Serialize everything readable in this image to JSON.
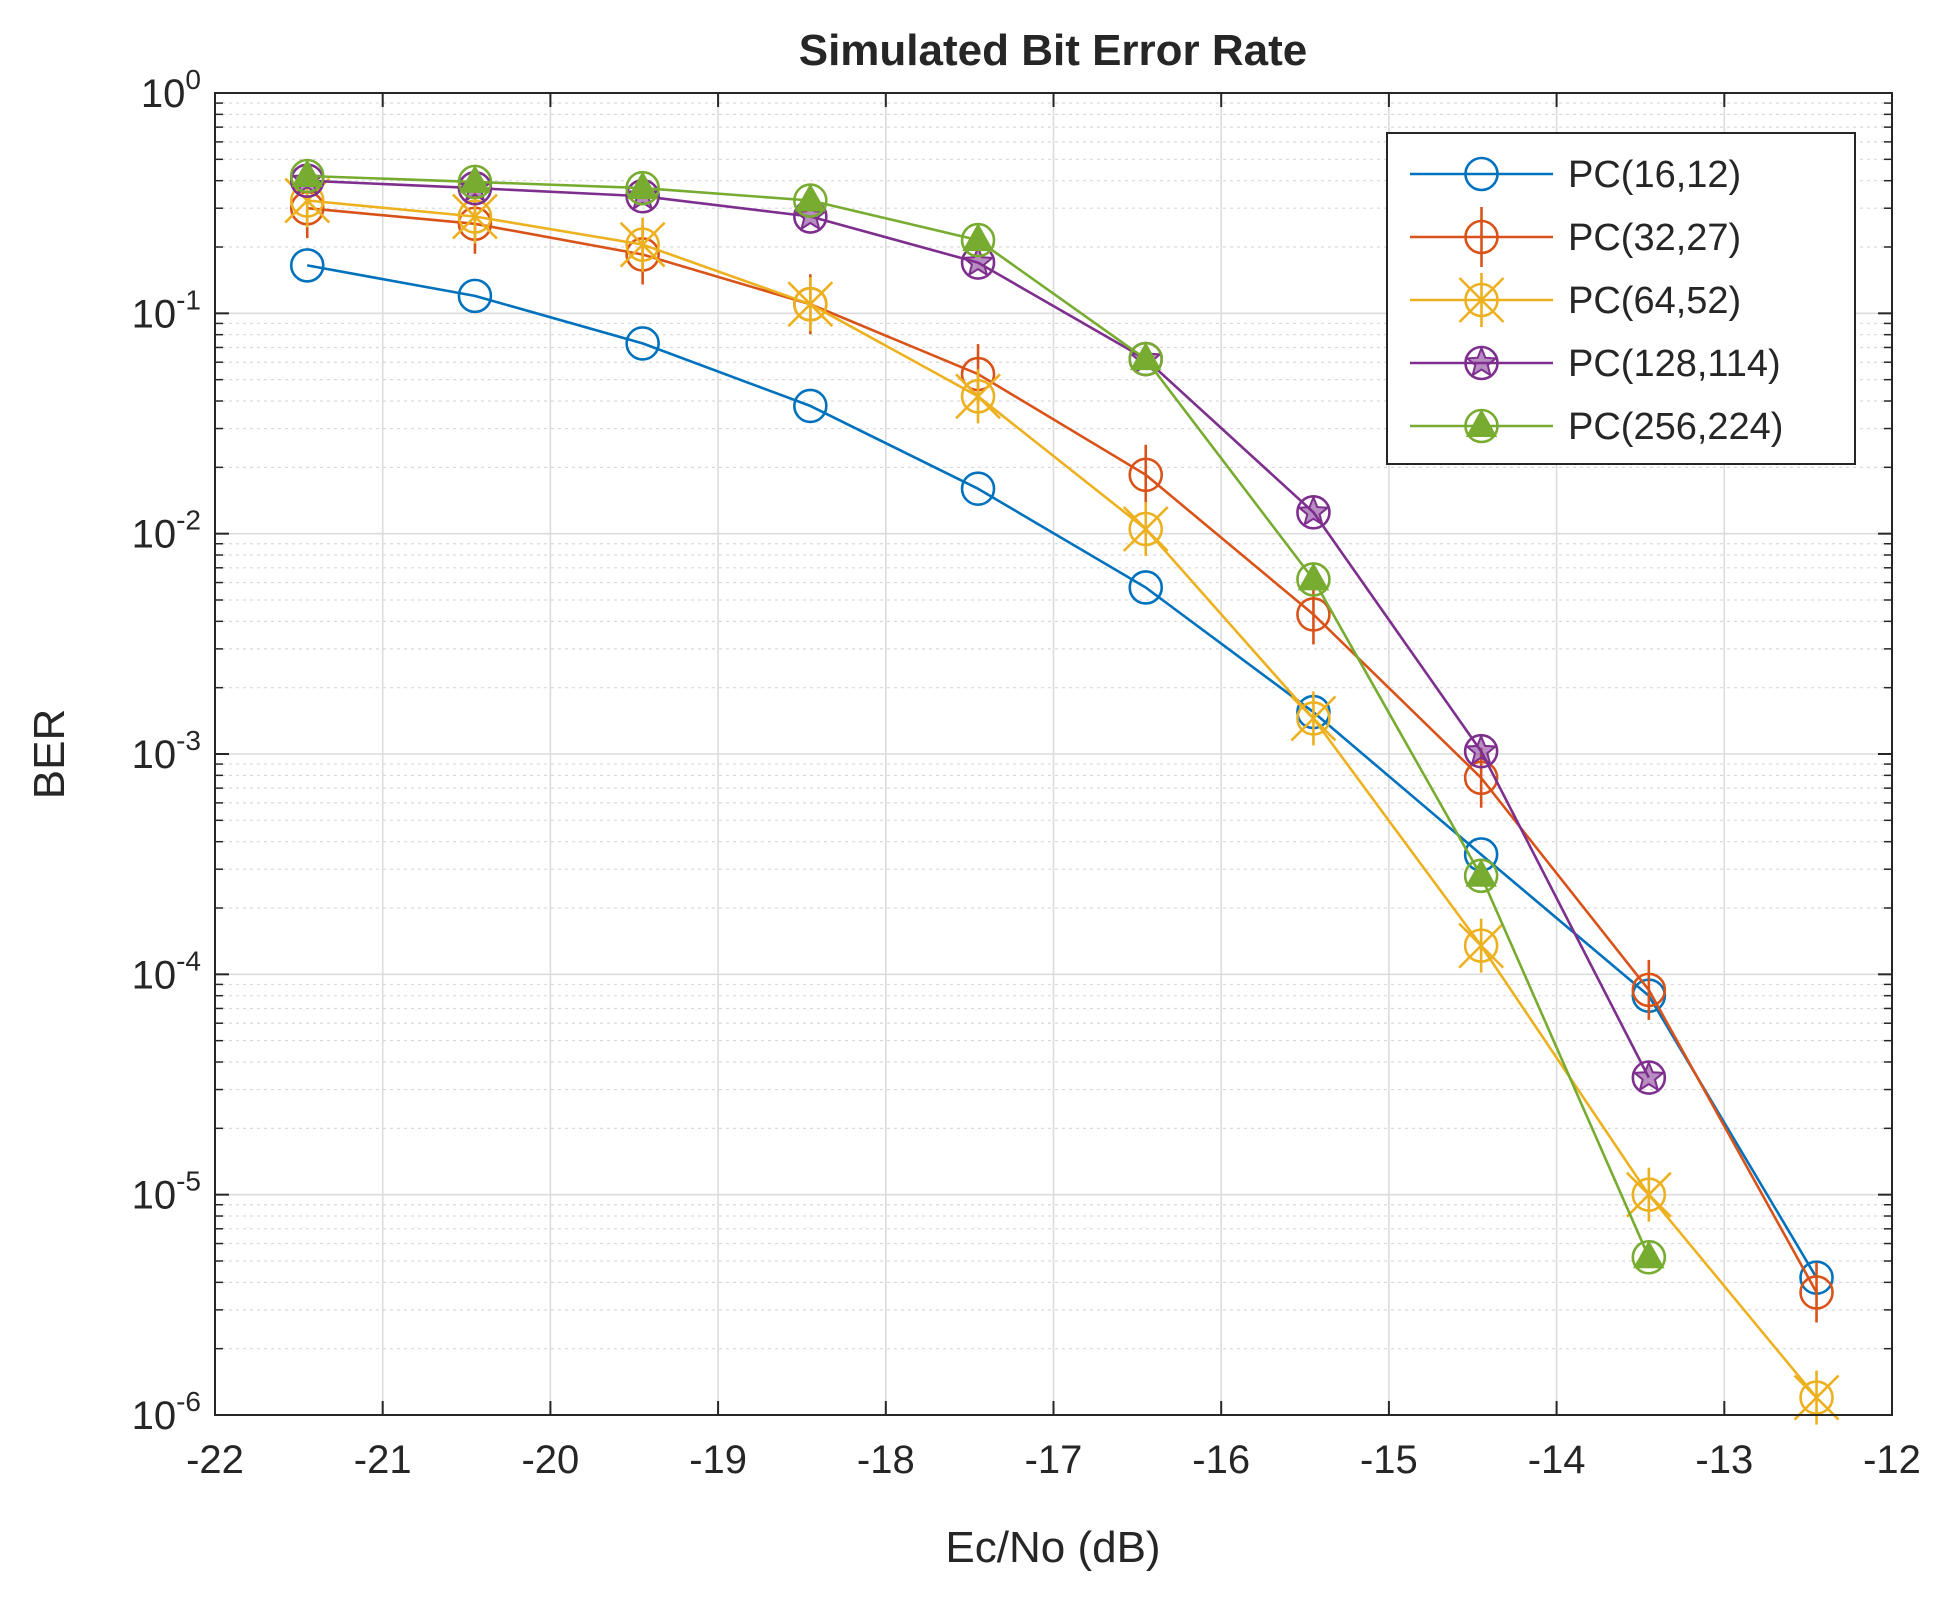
{
  "chart_data": {
    "type": "line",
    "title": "Simulated Bit Error Rate",
    "xlabel": "Ec/No (dB)",
    "ylabel": "BER",
    "xscale": "linear",
    "yscale": "log",
    "xlim": [
      -22,
      -12
    ],
    "ylim": [
      1e-06,
      1
    ],
    "grid": true,
    "minor_grid": true,
    "legend_position": "top-right",
    "x_ticks": [
      -22,
      -21,
      -20,
      -19,
      -18,
      -17,
      -16,
      -15,
      -14,
      -13,
      -12
    ],
    "x_tick_labels": [
      "-22",
      "-21",
      "-20",
      "-19",
      "-18",
      "-17",
      "-16",
      "-15",
      "-14",
      "-13",
      "-12"
    ],
    "y_ticks": [
      {
        "value": 1,
        "base": "10",
        "exp": "0"
      },
      {
        "value": 0.1,
        "base": "10",
        "exp": "-1"
      },
      {
        "value": 0.01,
        "base": "10",
        "exp": "-2"
      },
      {
        "value": 0.001,
        "base": "10",
        "exp": "-3"
      },
      {
        "value": 0.0001,
        "base": "10",
        "exp": "-4"
      },
      {
        "value": 1e-05,
        "base": "10",
        "exp": "-5"
      },
      {
        "value": 1e-06,
        "base": "10",
        "exp": "-6"
      }
    ],
    "series": [
      {
        "name": "PC(16,12)",
        "color": "#0072BD",
        "marker": "circle",
        "x": [
          -21.45,
          -20.45,
          -19.45,
          -18.45,
          -17.45,
          -16.45,
          -15.45,
          -14.45,
          -13.45,
          -12.45
        ],
        "y": [
          0.165,
          0.12,
          0.073,
          0.038,
          0.016,
          0.0057,
          0.00155,
          0.00035,
          8e-05,
          4.2e-06
        ]
      },
      {
        "name": "PC(32,27)",
        "color": "#D95319",
        "marker": "circle-plus",
        "x": [
          -21.45,
          -20.45,
          -19.45,
          -18.45,
          -17.45,
          -16.45,
          -15.45,
          -14.45,
          -13.45,
          -12.45
        ],
        "y": [
          0.3,
          0.255,
          0.185,
          0.11,
          0.053,
          0.0185,
          0.0043,
          0.00078,
          8.5e-05,
          3.6e-06
        ]
      },
      {
        "name": "PC(64,52)",
        "color": "#EDB120",
        "marker": "asterisk-circle",
        "x": [
          -21.45,
          -20.45,
          -19.45,
          -18.45,
          -17.45,
          -16.45,
          -15.45,
          -14.45,
          -13.45,
          -12.45
        ],
        "y": [
          0.325,
          0.275,
          0.205,
          0.11,
          0.042,
          0.0105,
          0.00145,
          0.000135,
          1e-05,
          1.2e-06
        ]
      },
      {
        "name": "PC(128,114)",
        "color": "#7E2F8E",
        "marker": "pentagram-circle",
        "x": [
          -21.45,
          -20.45,
          -19.45,
          -18.45,
          -17.45,
          -16.45,
          -15.45,
          -14.45,
          -13.45
        ],
        "y": [
          0.4,
          0.37,
          0.34,
          0.275,
          0.17,
          0.062,
          0.0125,
          0.00103,
          3.4e-05
        ]
      },
      {
        "name": "PC(256,224)",
        "color": "#77AC30",
        "marker": "triangle-circle",
        "x": [
          -21.45,
          -20.45,
          -19.45,
          -18.45,
          -17.45,
          -16.45,
          -15.45,
          -14.45,
          -13.45
        ],
        "y": [
          0.42,
          0.395,
          0.37,
          0.325,
          0.215,
          0.062,
          0.0062,
          0.00028,
          5.2e-06
        ]
      }
    ]
  }
}
